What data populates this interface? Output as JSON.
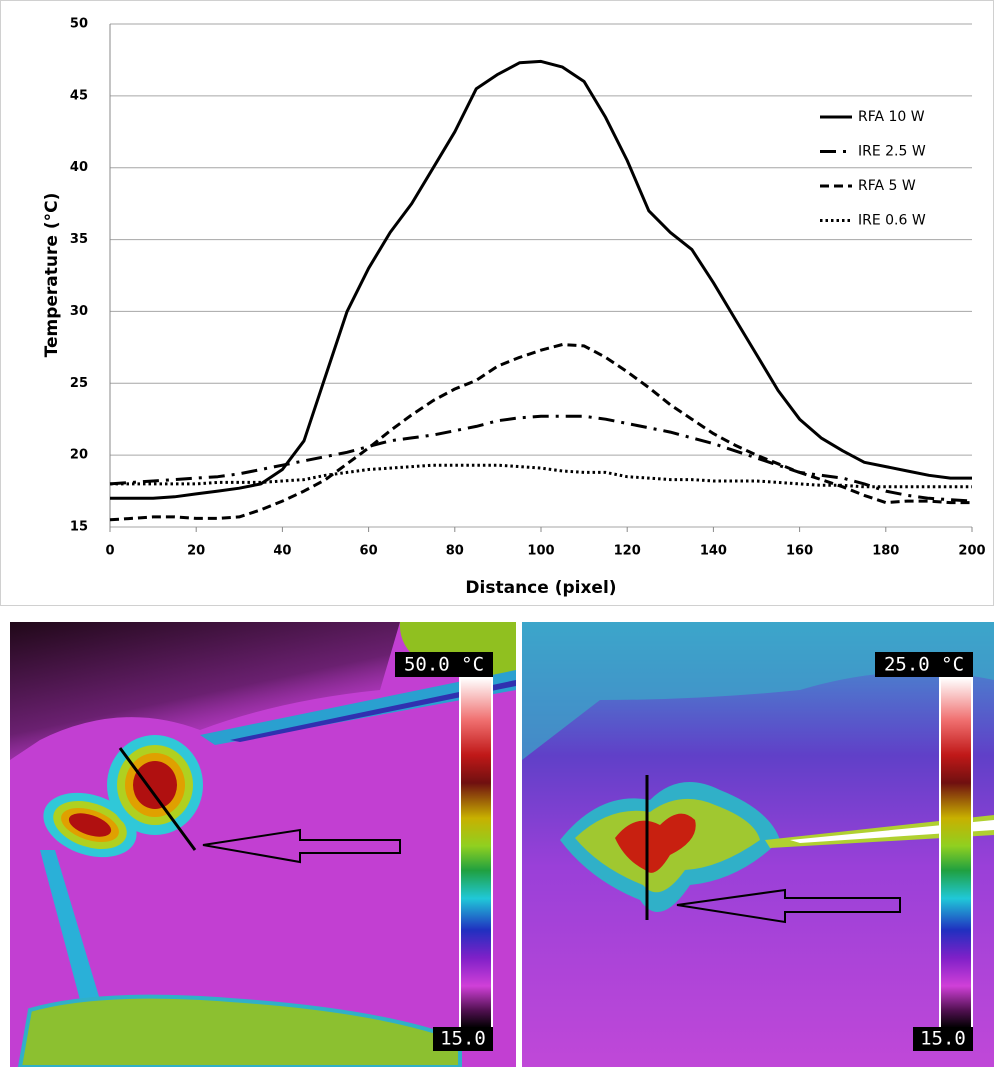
{
  "chart_data": {
    "type": "line",
    "xlabel": "Distance  (pixel)",
    "ylabel": "Temperature (°C)",
    "x": [
      0,
      5,
      10,
      15,
      20,
      25,
      30,
      35,
      40,
      45,
      50,
      55,
      60,
      65,
      70,
      75,
      80,
      85,
      90,
      95,
      100,
      105,
      110,
      115,
      120,
      125,
      130,
      135,
      140,
      145,
      150,
      155,
      160,
      165,
      170,
      175,
      180,
      185,
      190,
      195,
      200
    ],
    "series": [
      {
        "name": "RFA 10 W",
        "color": "#000000",
        "dash": "solid",
        "values": [
          17,
          17,
          17,
          17.1,
          17.3,
          17.5,
          17.7,
          18,
          19,
          21,
          25.5,
          30,
          33,
          35.5,
          37.5,
          40,
          42.5,
          45.5,
          46.5,
          47.3,
          47.4,
          47,
          46,
          43.5,
          40.5,
          37,
          35.5,
          34.3,
          32,
          29.5,
          27,
          24.5,
          22.5,
          21.2,
          20.3,
          19.5,
          19.2,
          18.9,
          18.6,
          18.4,
          18.4
        ]
      },
      {
        "name": "IRE 2.5 W",
        "color": "#000000",
        "dash": "dashdot",
        "values": [
          18,
          18.1,
          18.2,
          18.3,
          18.4,
          18.5,
          18.7,
          19,
          19.3,
          19.6,
          19.9,
          20.2,
          20.6,
          21,
          21.2,
          21.4,
          21.7,
          22,
          22.4,
          22.6,
          22.7,
          22.7,
          22.7,
          22.5,
          22.2,
          21.9,
          21.6,
          21.2,
          20.8,
          20.3,
          19.8,
          19.3,
          18.8,
          18.6,
          18.4,
          18,
          17.5,
          17.2,
          17,
          16.9,
          16.8
        ]
      },
      {
        "name": "RFA  5 W",
        "color": "#000000",
        "dash": "dashed",
        "values": [
          15.5,
          15.6,
          15.7,
          15.7,
          15.6,
          15.6,
          15.7,
          16.2,
          16.8,
          17.5,
          18.3,
          19.4,
          20.5,
          21.7,
          22.8,
          23.8,
          24.6,
          25.2,
          26.2,
          26.8,
          27.3,
          27.7,
          27.6,
          26.8,
          25.8,
          24.7,
          23.5,
          22.5,
          21.5,
          20.7,
          20,
          19.4,
          18.8,
          18.3,
          17.8,
          17.2,
          16.7,
          16.8,
          16.8,
          16.7,
          16.7
        ]
      },
      {
        "name": "IRE 0.6 W",
        "color": "#000000",
        "dash": "dotted",
        "values": [
          18,
          18,
          18,
          18,
          18,
          18.1,
          18.1,
          18.1,
          18.2,
          18.3,
          18.6,
          18.8,
          19,
          19.1,
          19.2,
          19.3,
          19.3,
          19.3,
          19.3,
          19.2,
          19.1,
          18.9,
          18.8,
          18.8,
          18.5,
          18.4,
          18.3,
          18.3,
          18.2,
          18.2,
          18.2,
          18.1,
          18,
          17.9,
          17.9,
          17.8,
          17.8,
          17.8,
          17.8,
          17.8,
          17.8
        ]
      }
    ],
    "xlim": [
      0,
      200
    ],
    "xticks": [
      0,
      20,
      40,
      60,
      80,
      100,
      120,
      140,
      160,
      180,
      200
    ],
    "ylim": [
      15,
      50
    ],
    "yticks": [
      15,
      20,
      25,
      30,
      35,
      40,
      45,
      50
    ],
    "grid": true,
    "legend": "upper right"
  },
  "thermal_images": [
    {
      "max_label": "50.0 °C",
      "min_label": "15.0"
    },
    {
      "max_label": "25.0 °C",
      "min_label": "15.0"
    }
  ]
}
